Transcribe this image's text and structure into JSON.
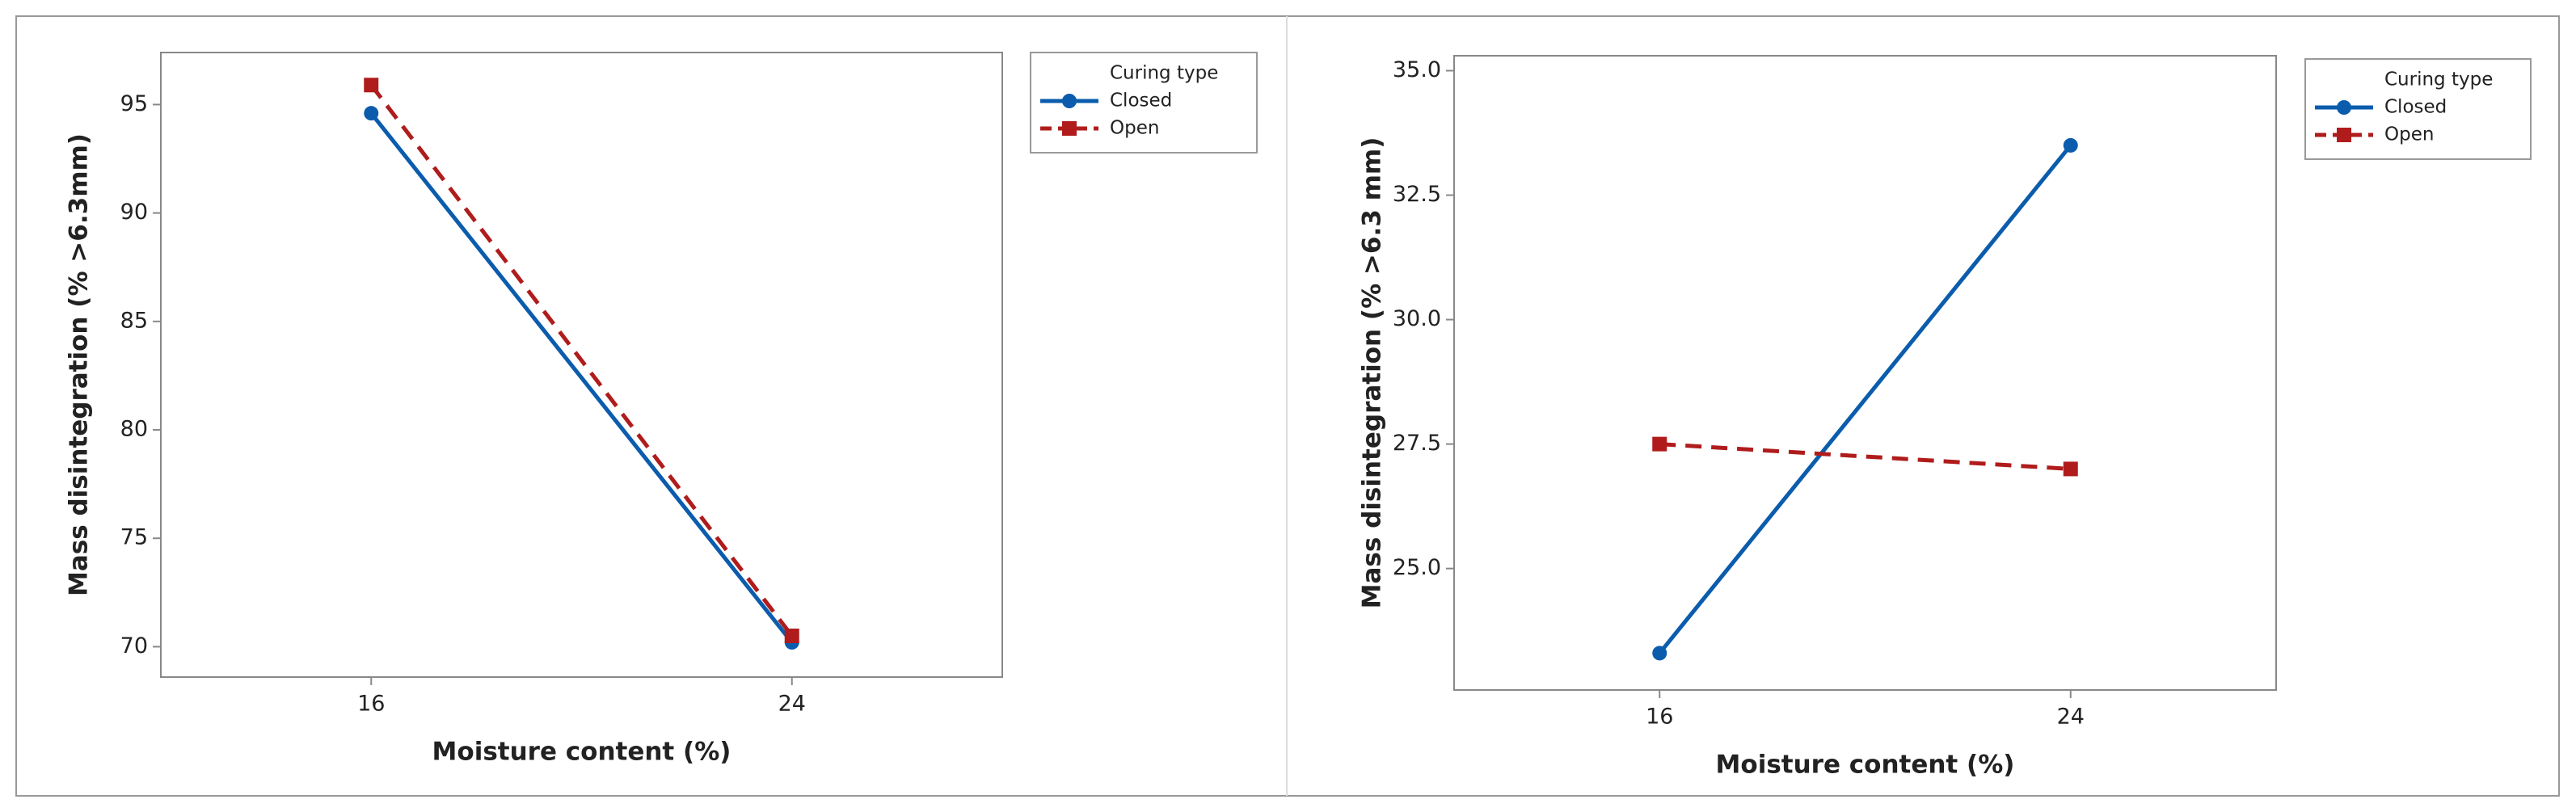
{
  "chart_data": [
    {
      "type": "line",
      "xlabel": "Moisture content (%)",
      "ylabel": "Mass disintegration (% >6.3mm)",
      "categories": [
        "16",
        "24"
      ],
      "series": [
        {
          "name": "Closed",
          "color": "#0b5cad",
          "marker": "circle",
          "linestyle": "solid",
          "values": [
            94.6,
            70.2
          ]
        },
        {
          "name": "Open",
          "color": "#b01c1c",
          "marker": "square",
          "linestyle": "dashed",
          "values": [
            95.9,
            70.5
          ]
        }
      ],
      "ylim": [
        68.6,
        97.4
      ],
      "yticks": [
        70,
        75,
        80,
        85,
        90,
        95
      ],
      "legend_title": "Curing type"
    },
    {
      "type": "line",
      "xlabel": "Moisture content (%)",
      "ylabel": "Mass disintegration (% >6.3 mm)",
      "categories": [
        "16",
        "24"
      ],
      "series": [
        {
          "name": "Closed",
          "color": "#0b5cad",
          "marker": "circle",
          "linestyle": "solid",
          "values": [
            23.3,
            33.5
          ]
        },
        {
          "name": "Open",
          "color": "#b01c1c",
          "marker": "square",
          "linestyle": "dashed",
          "values": [
            27.5,
            27.0
          ]
        }
      ],
      "ylim": [
        22.56,
        35.3
      ],
      "yticks": [
        {
          "value": 25,
          "label": "25.0"
        },
        {
          "value": 27.5,
          "label": "27.5"
        },
        {
          "value": 30,
          "label": "30.0"
        },
        {
          "value": 32.5,
          "label": "32.5"
        },
        {
          "value": 35,
          "label": "35.0"
        }
      ],
      "legend_title": "Curing type"
    }
  ]
}
